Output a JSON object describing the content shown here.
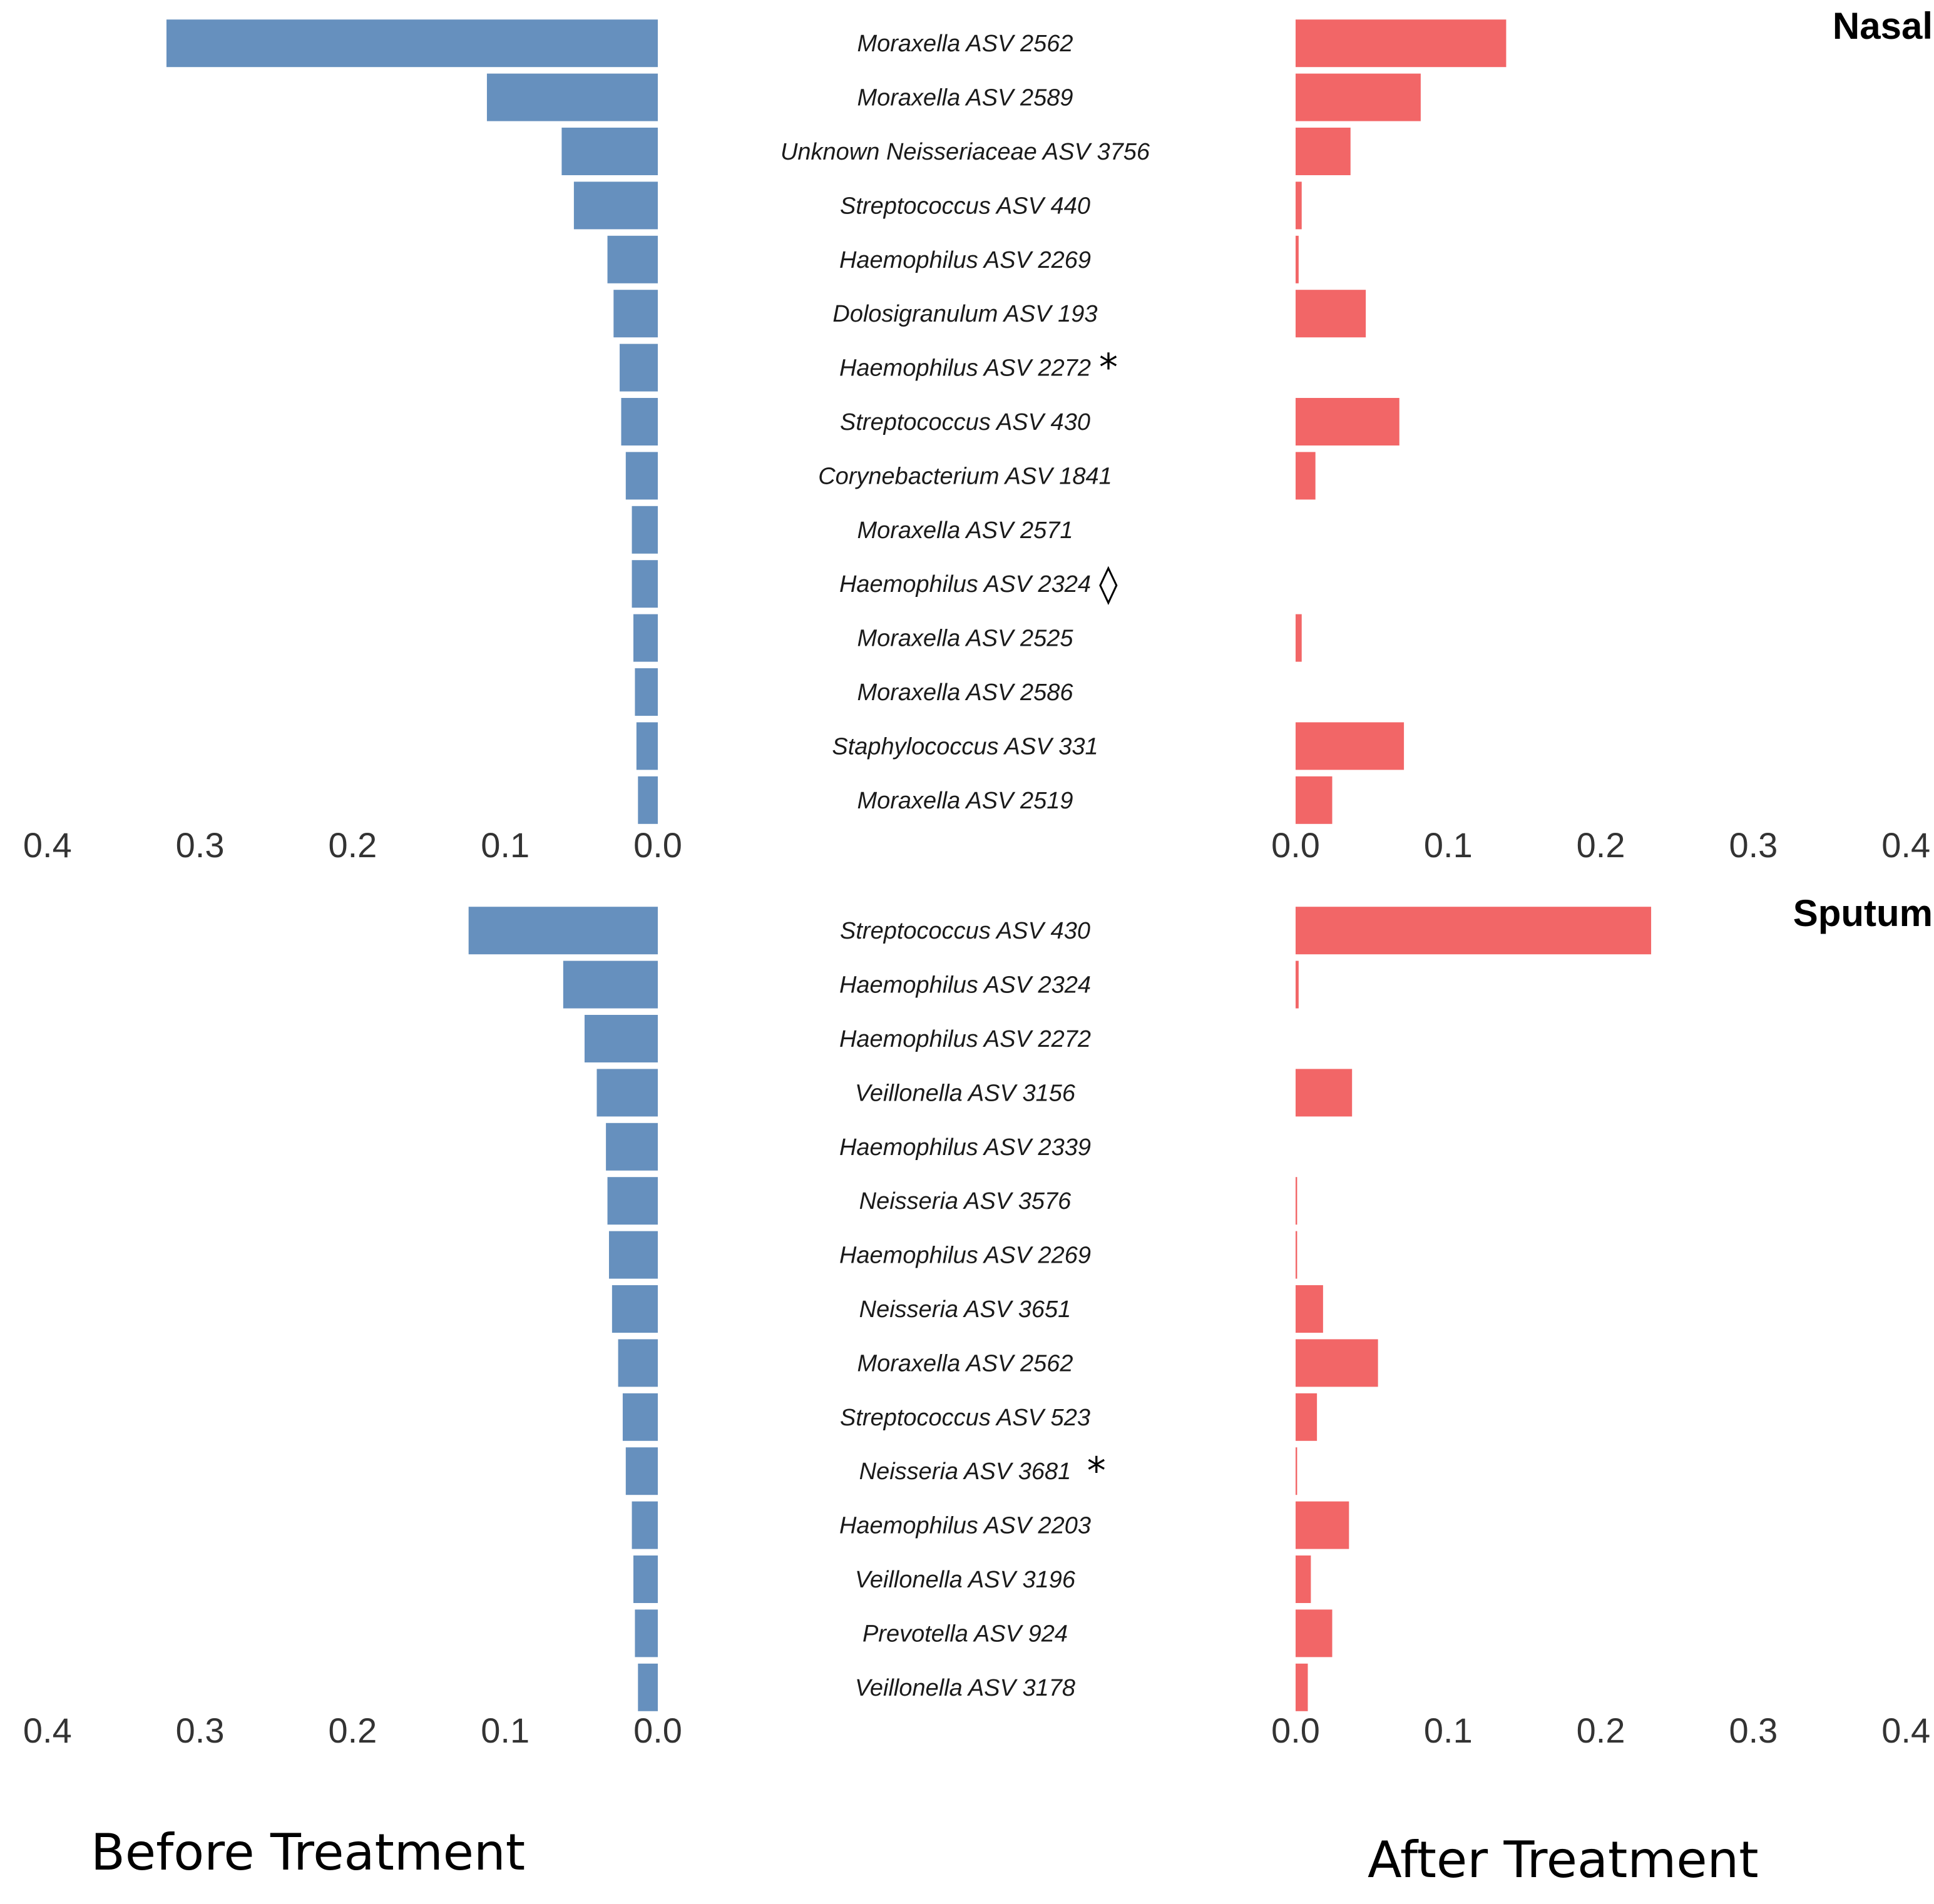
{
  "colors": {
    "before": "#6690BE",
    "after": "#F26667"
  },
  "footer": {
    "before": "Before Treatment",
    "after": "After Treatment"
  },
  "chart_data": [
    {
      "type": "bar",
      "title": "Nasal",
      "orientation": "horizontal-diverging",
      "xlim": [
        0,
        0.4
      ],
      "ticks": [
        "0.4",
        "0.3",
        "0.2",
        "0.1",
        "0.0"
      ],
      "ticks_right": [
        "0.0",
        "0.1",
        "0.2",
        "0.3",
        "0.4"
      ],
      "categories": [
        "Moraxella ASV 2562",
        "Moraxella ASV 2589",
        "Unknown Neisseriaceae ASV 3756",
        "Streptococcus ASV 440",
        "Haemophilus ASV 2269",
        "Dolosigranulum ASV 193",
        "Haemophilus ASV 2272",
        "Streptococcus ASV 430",
        "Corynebacterium ASV 1841",
        "Moraxella ASV 2571",
        "Haemophilus ASV 2324",
        "Moraxella ASV 2525",
        "Moraxella ASV 2586",
        "Staphylococcus ASV 331",
        "Moraxella ASV 2519"
      ],
      "markers": [
        "",
        "",
        "",
        "",
        "",
        "",
        "*",
        "",
        "",
        "",
        "◊",
        "",
        "",
        "",
        ""
      ],
      "series": [
        {
          "name": "Before Treatment",
          "values": [
            0.322,
            0.112,
            0.063,
            0.055,
            0.033,
            0.029,
            0.025,
            0.024,
            0.021,
            0.017,
            0.017,
            0.016,
            0.015,
            0.014,
            0.013
          ]
        },
        {
          "name": "After Treatment",
          "values": [
            0.138,
            0.082,
            0.036,
            0.004,
            0.002,
            0.046,
            0.0,
            0.068,
            0.013,
            0.0,
            0.0,
            0.004,
            0.0,
            0.071,
            0.024
          ]
        }
      ]
    },
    {
      "type": "bar",
      "title": "Sputum",
      "orientation": "horizontal-diverging",
      "xlim": [
        0,
        0.4
      ],
      "ticks": [
        "0.4",
        "0.3",
        "0.2",
        "0.1",
        "0.0"
      ],
      "ticks_right": [
        "0.0",
        "0.1",
        "0.2",
        "0.3",
        "0.4"
      ],
      "categories": [
        "Streptococcus ASV 430",
        "Haemophilus ASV 2324",
        "Haemophilus ASV 2272",
        "Veillonella ASV 3156",
        "Haemophilus ASV 2339",
        "Neisseria ASV 3576",
        "Haemophilus ASV 2269",
        "Neisseria ASV 3651",
        "Moraxella ASV 2562",
        "Streptococcus ASV 523",
        "Neisseria ASV 3681",
        "Haemophilus ASV 2203",
        "Veillonella ASV 3196",
        "Prevotella ASV 924",
        "Veillonella ASV 3178"
      ],
      "markers": [
        "",
        "",
        "",
        "",
        "",
        "",
        "",
        "",
        "",
        "",
        "*",
        "",
        "",
        "",
        ""
      ],
      "series": [
        {
          "name": "Before Treatment",
          "values": [
            0.124,
            0.062,
            0.048,
            0.04,
            0.034,
            0.033,
            0.032,
            0.03,
            0.026,
            0.023,
            0.021,
            0.017,
            0.016,
            0.015,
            0.013
          ]
        },
        {
          "name": "After Treatment",
          "values": [
            0.233,
            0.002,
            0.0,
            0.037,
            0.0,
            0.001,
            0.001,
            0.018,
            0.054,
            0.014,
            0.001,
            0.035,
            0.01,
            0.024,
            0.008
          ]
        }
      ]
    }
  ]
}
